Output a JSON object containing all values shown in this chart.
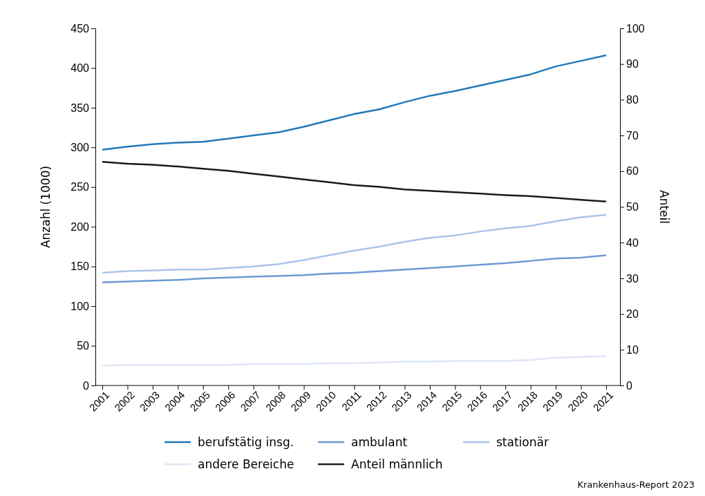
{
  "chart_data": {
    "type": "line",
    "categories": [
      "2001",
      "2002",
      "2003",
      "2004",
      "2005",
      "2006",
      "2007",
      "2008",
      "2009",
      "2010",
      "2011",
      "2012",
      "2013",
      "2014",
      "2015",
      "2016",
      "2017",
      "2018",
      "2019",
      "2020",
      "2021"
    ],
    "ylabel": "Anzahl (1000)",
    "y2label": "Anteil",
    "ylim": [
      0,
      450
    ],
    "yticks": [
      0,
      50,
      100,
      150,
      200,
      250,
      300,
      350,
      400,
      450
    ],
    "y2lim": [
      0,
      100
    ],
    "y2ticks": [
      0,
      10,
      20,
      30,
      40,
      50,
      60,
      70,
      80,
      90,
      100
    ],
    "grid": false,
    "legend": "bottom",
    "marker": "none",
    "line_style": "solid",
    "series": [
      {
        "name": "berufstätig insg.",
        "color": "#1f78b9",
        "values": [
          297,
          301,
          304,
          306,
          307,
          311,
          315,
          319,
          326,
          334,
          342,
          348,
          357,
          365,
          371,
          378,
          385,
          392,
          402,
          409,
          416
        ]
      },
      {
        "name": "ambulant",
        "color": "#6b9bd6",
        "values": [
          130,
          131,
          132,
          133,
          135,
          136,
          137,
          138,
          139,
          141,
          142,
          144,
          146,
          148,
          150,
          152,
          154,
          157,
          160,
          161,
          164
        ]
      },
      {
        "name": "stationär",
        "color": "#a9c5ea",
        "values": [
          142,
          144,
          145,
          146,
          146,
          148,
          150,
          153,
          158,
          164,
          170,
          175,
          181,
          186,
          189,
          194,
          198,
          201,
          207,
          212,
          215
        ]
      },
      {
        "name": "andere Bereiche",
        "color": "#dde6f5",
        "values": [
          25,
          26,
          26,
          26,
          26,
          26,
          27,
          27,
          27,
          28,
          28,
          29,
          30,
          30,
          31,
          31,
          31,
          32,
          35,
          36,
          37
        ]
      },
      {
        "name": "Anteil männlich",
        "color": "#1a1a1a",
        "axis": "y2",
        "values": [
          62.6,
          62.1,
          61.8,
          61.3,
          60.7,
          60.1,
          59.3,
          58.5,
          57.7,
          56.9,
          56.1,
          55.6,
          54.9,
          54.5,
          54.1,
          53.7,
          53.3,
          53.0,
          52.5,
          52.0,
          51.5
        ]
      }
    ],
    "annotations": [
      "Krankenhaus-Report 2023"
    ]
  }
}
